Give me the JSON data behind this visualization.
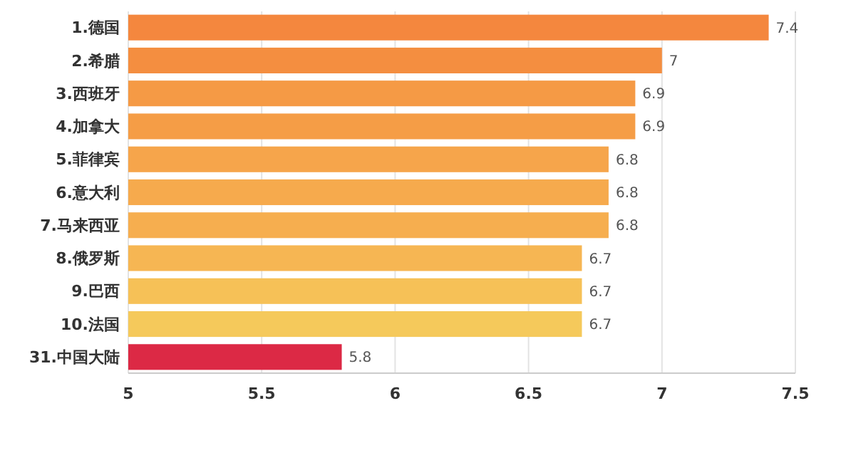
{
  "chart_data": {
    "type": "bar",
    "orientation": "horizontal",
    "categories": [
      "1.德国",
      "2.希腊",
      "3.西班牙",
      "4.加拿大",
      "5.菲律宾",
      "6.意大利",
      "7.马来西亚",
      "8.俄罗斯",
      "9.巴西",
      "10.法国",
      "31.中国大陆"
    ],
    "values": [
      7.4,
      7,
      6.9,
      6.9,
      6.8,
      6.8,
      6.8,
      6.7,
      6.7,
      6.7,
      5.8
    ],
    "colors": [
      "#f4873e",
      "#f48e40",
      "#f59a45",
      "#f59d46",
      "#f6a54b",
      "#f6aa4d",
      "#f6ae4f",
      "#f6b653",
      "#f6c157",
      "#f5c95b",
      "#dc2945"
    ],
    "xlim": [
      5,
      7.5
    ],
    "xticks": [
      5,
      5.5,
      6,
      6.5,
      7,
      7.5
    ],
    "grid": "x",
    "data_labels": true
  }
}
